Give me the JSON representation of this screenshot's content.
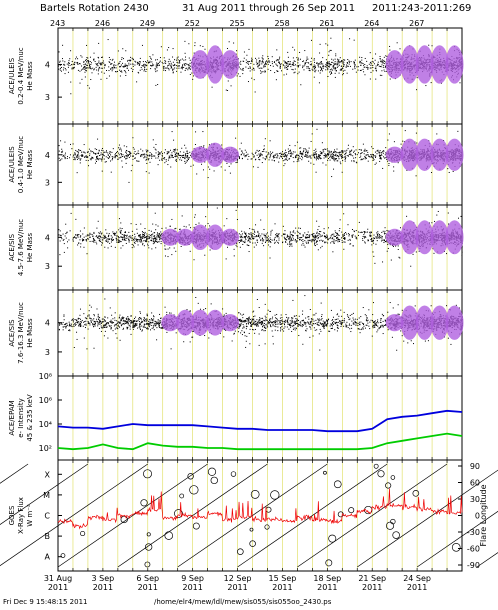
{
  "header": {
    "title": "Bartels Rotation 2430",
    "date_range": "31 Aug 2011 through 26 Sep 2011",
    "doy_range": "2011:243-2011:269"
  },
  "footer": {
    "timestamp": "Fri Dec  9 15:48:15 2011",
    "path": "/home/elr4/mew/ldl/mew/sis055/sis055oo_2430.ps"
  },
  "colors": {
    "dense_particle": "#b060e0",
    "flux_high": "#0000dd",
    "flux_low": "#00cc00",
    "xray": "#ee0000",
    "day_grid": "#dddd55",
    "axis": "#000000"
  },
  "chart_data": [
    {
      "type": "scatter",
      "panel": "ULEIS 0.2-0.4",
      "ylabel_lines": [
        "ACE/ULEIS",
        "0.2-0.4 MeV/nuc",
        "He Mass"
      ],
      "yticks": [
        "3",
        "4"
      ],
      "top_ticks": [
        "243",
        "246",
        "249",
        "252",
        "255",
        "258",
        "261",
        "264",
        "267"
      ],
      "density_by_day": [
        3,
        4,
        4,
        3,
        4,
        3,
        3,
        4,
        4,
        9,
        10,
        9,
        3,
        4,
        3,
        4,
        3,
        5,
        6,
        3,
        3,
        4,
        9,
        10,
        10,
        10,
        10
      ],
      "grid": true
    },
    {
      "type": "scatter",
      "panel": "ULEIS 0.4-1.0",
      "ylabel_lines": [
        "ACE/ULEIS",
        "0.4-1.0 MeV/nuc",
        "He Mass"
      ],
      "yticks": [
        "3",
        "4"
      ],
      "density_by_day": [
        2,
        4,
        4,
        3,
        4,
        3,
        3,
        4,
        4,
        8,
        9,
        8,
        2,
        3,
        3,
        4,
        4,
        5,
        6,
        3,
        3,
        4,
        8,
        10,
        10,
        10,
        10
      ],
      "grid": true
    },
    {
      "type": "scatter",
      "panel": "SIS 4.5-7.6",
      "ylabel_lines": [
        "ACE/SIS",
        "4.5-7.6 MeV/nuc",
        "He Mass"
      ],
      "yticks": [
        "3",
        "4"
      ],
      "density_by_day": [
        2,
        3,
        4,
        4,
        5,
        6,
        6,
        8,
        8,
        9,
        9,
        8,
        5,
        4,
        3,
        5,
        4,
        5,
        4,
        3,
        3,
        4,
        8,
        10,
        10,
        10,
        10
      ],
      "grid": true
    },
    {
      "type": "scatter",
      "panel": "SIS 7.6-16.3",
      "ylabel_lines": [
        "ACE/SIS",
        "7.6-16.3 MeV/nuc",
        "He Mass"
      ],
      "yticks": [
        "3",
        "4"
      ],
      "density_by_day": [
        3,
        4,
        5,
        5,
        6,
        6,
        6,
        8,
        9,
        9,
        9,
        8,
        7,
        6,
        5,
        5,
        4,
        5,
        4,
        3,
        3,
        4,
        8,
        10,
        10,
        10,
        10
      ],
      "grid": true
    },
    {
      "type": "line",
      "panel": "EPAM",
      "ylabel_lines": [
        "ACE/EPAM",
        "e- Intensity",
        "45 & 235 keV"
      ],
      "yticks": [
        "10²",
        "10⁴",
        "10⁶",
        "10⁸"
      ],
      "yscale": "log",
      "ylim": [
        10,
        100000000
      ],
      "grid": true,
      "x": [
        0,
        1,
        2,
        3,
        4,
        5,
        6,
        7,
        8,
        9,
        10,
        11,
        12,
        13,
        14,
        15,
        16,
        17,
        18,
        19,
        20,
        21,
        22,
        23,
        24,
        25,
        26,
        27
      ],
      "series": [
        {
          "color": "#0000dd",
          "log10_values": [
            3.8,
            3.7,
            3.7,
            3.6,
            3.8,
            4.0,
            3.9,
            3.9,
            3.9,
            3.9,
            3.8,
            3.7,
            3.6,
            3.6,
            3.5,
            3.5,
            3.5,
            3.5,
            3.4,
            3.4,
            3.4,
            3.6,
            4.4,
            4.6,
            4.7,
            4.9,
            5.1,
            5.0
          ]
        },
        {
          "color": "#00cc00",
          "log10_values": [
            2.0,
            1.9,
            2.0,
            2.3,
            2.0,
            1.9,
            2.4,
            2.2,
            2.1,
            2.1,
            2.0,
            2.0,
            1.9,
            1.9,
            1.9,
            1.9,
            1.9,
            1.9,
            1.9,
            1.9,
            1.9,
            2.0,
            2.4,
            2.6,
            2.8,
            3.0,
            3.2,
            3.0
          ]
        }
      ]
    },
    {
      "type": "scatter",
      "panel": "GOES X-Ray",
      "ylabel_lines": [
        "GOES",
        "X-Ray Flux",
        "W m⁻²"
      ],
      "class_labels": [
        "A",
        "B",
        "C",
        "M",
        "X"
      ],
      "right_ticks": [
        "90",
        "60",
        "30",
        "0",
        "-30",
        "-60",
        "-90"
      ],
      "right_axis_label": "Flare Longitude",
      "xtick_labels": [
        {
          "day": "31 Aug",
          "year": "2011"
        },
        {
          "day": "3 Sep",
          "year": "2011"
        },
        {
          "day": "6 Sep",
          "year": "2011"
        },
        {
          "day": "9 Sep",
          "year": "2011"
        },
        {
          "day": "12 Sep",
          "year": "2011"
        },
        {
          "day": "15 Sep",
          "year": "2011"
        },
        {
          "day": "18 Sep",
          "year": "2011"
        },
        {
          "day": "21 Sep",
          "year": "2011"
        },
        {
          "day": "24 Sep",
          "year": "2011"
        }
      ],
      "xray_level_by_day": [
        2.2,
        2.0,
        2.4,
        2.3,
        2.5,
        2.6,
        2.8,
        2.4,
        2.5,
        2.4,
        2.6,
        2.3,
        2.4,
        2.3,
        2.3,
        2.2,
        2.4,
        2.3,
        2.2,
        2.5,
        2.7,
        2.9,
        3.0,
        2.9,
        2.8,
        2.7,
        2.6
      ],
      "grid": true
    }
  ]
}
